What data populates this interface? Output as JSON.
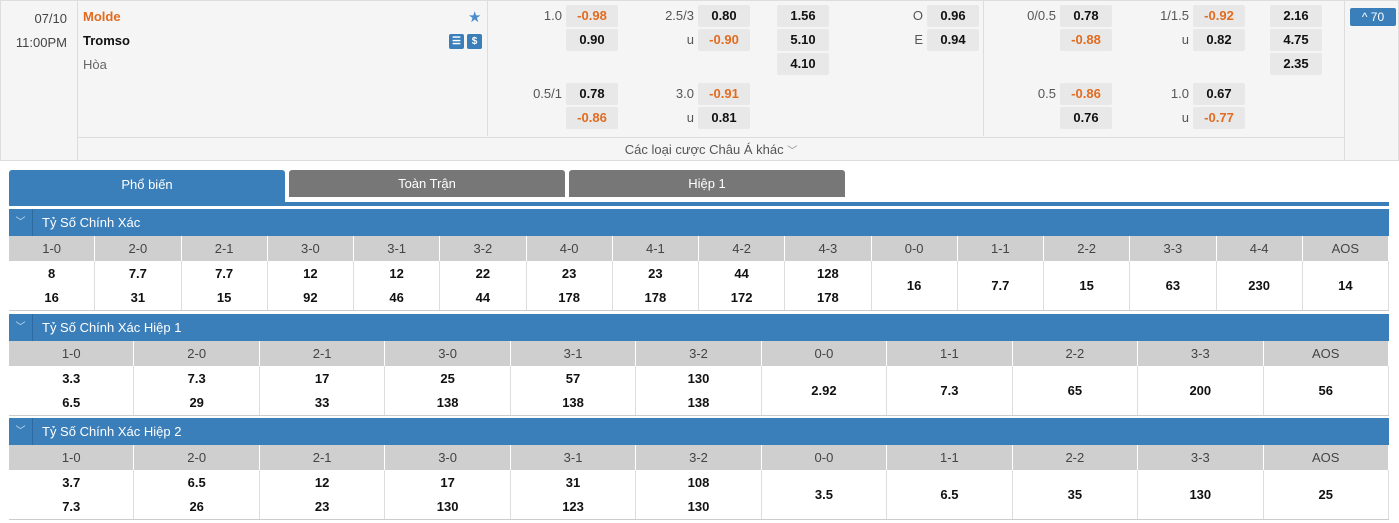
{
  "match": {
    "date": "07/10",
    "time": "11:00PM",
    "home": "Molde",
    "away": "Tromso",
    "draw": "Hòa",
    "more_label": "Các loại cược Châu Á khác",
    "badge": "^ 70"
  },
  "odds_group1": [
    [
      "1.0",
      "-0.98",
      "2.5/3",
      "0.80",
      "1.56",
      "O",
      "0.96"
    ],
    [
      "",
      "0.90",
      "u",
      "-0.90",
      "5.10",
      "E",
      "0.94"
    ],
    [
      "",
      "",
      "",
      "",
      "4.10",
      "",
      ""
    ],
    [
      "0.5/1",
      "0.78",
      "3.0",
      "-0.91",
      "",
      "",
      ""
    ],
    [
      "",
      "-0.86",
      "u",
      "0.81",
      "",
      "",
      ""
    ]
  ],
  "odds_group2": [
    [
      "0/0.5",
      "0.78",
      "1/1.5",
      "-0.92",
      "2.16"
    ],
    [
      "",
      "-0.88",
      "u",
      "0.82",
      "4.75"
    ],
    [
      "",
      "",
      "",
      "",
      "2.35"
    ],
    [
      "0.5",
      "-0.86",
      "1.0",
      "0.67",
      ""
    ],
    [
      "",
      "0.76",
      "u",
      "-0.77",
      ""
    ]
  ],
  "tabs": [
    {
      "label": "Phổ biến",
      "active": true
    },
    {
      "label": "Toàn Trận"
    },
    {
      "label": "Hiệp 1"
    }
  ],
  "sections": [
    {
      "title": "Tỷ Số Chính Xác",
      "headers": [
        "1-0",
        "2-0",
        "2-1",
        "3-0",
        "3-1",
        "3-2",
        "4-0",
        "4-1",
        "4-2",
        "4-3",
        "0-0",
        "1-1",
        "2-2",
        "3-3",
        "4-4",
        "AOS"
      ],
      "values": [
        [
          "8",
          "16"
        ],
        [
          "7.7",
          "31"
        ],
        [
          "7.7",
          "15"
        ],
        [
          "12",
          "92"
        ],
        [
          "12",
          "46"
        ],
        [
          "22",
          "44"
        ],
        [
          "23",
          "178"
        ],
        [
          "23",
          "178"
        ],
        [
          "44",
          "172"
        ],
        [
          "128",
          "178"
        ],
        [
          "16"
        ],
        [
          "7.7"
        ],
        [
          "15"
        ],
        [
          "63"
        ],
        [
          "230"
        ],
        [
          "14"
        ]
      ]
    },
    {
      "title": "Tỷ Số Chính Xác Hiệp 1",
      "headers": [
        "1-0",
        "2-0",
        "2-1",
        "3-0",
        "3-1",
        "3-2",
        "0-0",
        "1-1",
        "2-2",
        "3-3",
        "AOS"
      ],
      "values": [
        [
          "3.3",
          "6.5"
        ],
        [
          "7.3",
          "29"
        ],
        [
          "17",
          "33"
        ],
        [
          "25",
          "138"
        ],
        [
          "57",
          "138"
        ],
        [
          "130",
          "138"
        ],
        [
          "2.92"
        ],
        [
          "7.3"
        ],
        [
          "65"
        ],
        [
          "200"
        ],
        [
          "56"
        ]
      ]
    },
    {
      "title": "Tỷ Số Chính Xác Hiệp 2",
      "headers": [
        "1-0",
        "2-0",
        "2-1",
        "3-0",
        "3-1",
        "3-2",
        "0-0",
        "1-1",
        "2-2",
        "3-3",
        "AOS"
      ],
      "values": [
        [
          "3.7",
          "7.3"
        ],
        [
          "6.5",
          "26"
        ],
        [
          "12",
          "23"
        ],
        [
          "17",
          "130"
        ],
        [
          "31",
          "123"
        ],
        [
          "108",
          "130"
        ],
        [
          "3.5"
        ],
        [
          "6.5"
        ],
        [
          "35"
        ],
        [
          "130"
        ],
        [
          "25"
        ]
      ]
    }
  ],
  "colors": {
    "accent": "#3a7fba",
    "negative": "#e26b1f",
    "tab_inactive": "#777777"
  }
}
